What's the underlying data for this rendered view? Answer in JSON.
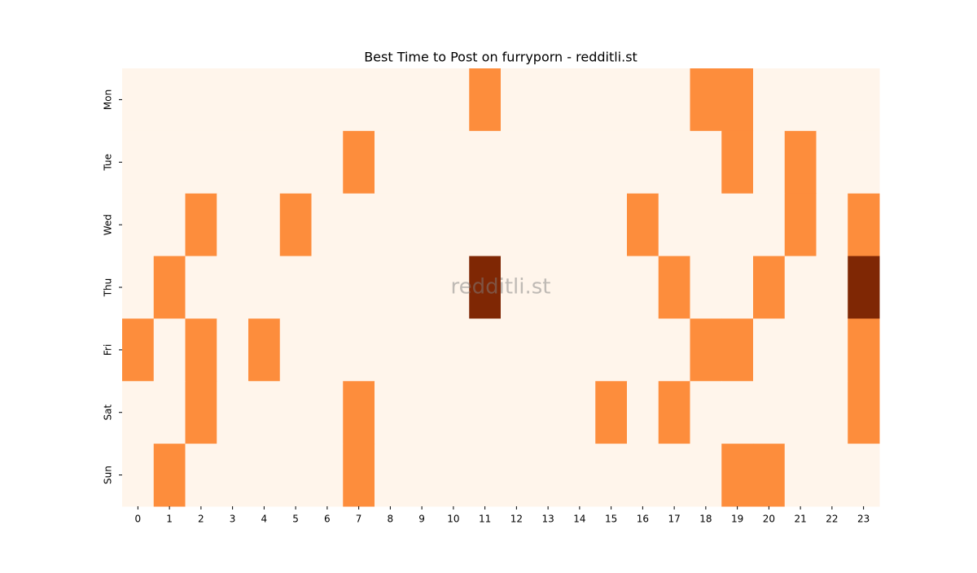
{
  "chart_data": {
    "type": "heatmap",
    "title": "Best Time to Post on furryporn - redditli.st",
    "watermark": "redditli.st",
    "categories": [
      0,
      1,
      2,
      3,
      4,
      5,
      6,
      7,
      8,
      9,
      10,
      11,
      12,
      13,
      14,
      15,
      16,
      17,
      18,
      19,
      20,
      21,
      22,
      23
    ],
    "rows": [
      "Mon",
      "Tue",
      "Wed",
      "Thu",
      "Fri",
      "Sat",
      "Sun"
    ],
    "values": [
      [
        0,
        0,
        0,
        0,
        0,
        0,
        0,
        0,
        0,
        0,
        0,
        1,
        0,
        0,
        0,
        0,
        0,
        0,
        1,
        1,
        0,
        0,
        0,
        0
      ],
      [
        0,
        0,
        0,
        0,
        0,
        0,
        0,
        1,
        0,
        0,
        0,
        0,
        0,
        0,
        0,
        0,
        0,
        0,
        0,
        1,
        0,
        1,
        0,
        0
      ],
      [
        0,
        0,
        1,
        0,
        0,
        1,
        0,
        0,
        0,
        0,
        0,
        0,
        0,
        0,
        0,
        0,
        1,
        0,
        0,
        0,
        0,
        1,
        0,
        1
      ],
      [
        0,
        1,
        0,
        0,
        0,
        0,
        0,
        0,
        0,
        0,
        0,
        2,
        0,
        0,
        0,
        0,
        0,
        1,
        0,
        0,
        1,
        0,
        0,
        2
      ],
      [
        1,
        0,
        1,
        0,
        1,
        0,
        0,
        0,
        0,
        0,
        0,
        0,
        0,
        0,
        0,
        0,
        0,
        0,
        1,
        1,
        0,
        0,
        0,
        1
      ],
      [
        0,
        0,
        1,
        0,
        0,
        0,
        0,
        1,
        0,
        0,
        0,
        0,
        0,
        0,
        0,
        1,
        0,
        1,
        0,
        0,
        0,
        0,
        0,
        1
      ],
      [
        0,
        1,
        0,
        0,
        0,
        0,
        0,
        1,
        0,
        0,
        0,
        0,
        0,
        0,
        0,
        0,
        0,
        0,
        0,
        1,
        1,
        0,
        0,
        0
      ]
    ],
    "zlim": [
      0,
      2
    ],
    "colors": [
      "#fff5eb",
      "#fd8d3c",
      "#7f2704"
    ]
  }
}
